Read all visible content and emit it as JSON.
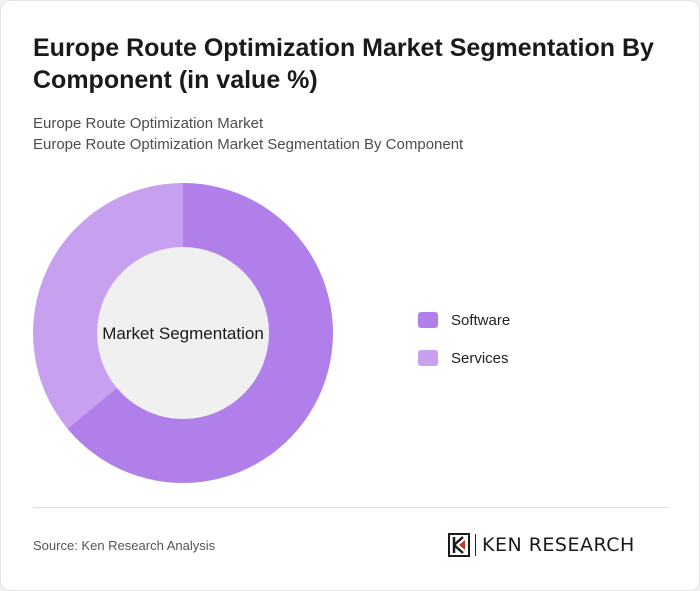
{
  "header": {
    "title": "Europe Route Optimization Market Segmentation By Component (in value %)",
    "subtitle_line1": "Europe Route Optimization Market",
    "subtitle_line2": "Europe Route Optimization Market Segmentation By Component"
  },
  "chart_data": {
    "type": "pie",
    "variant": "donut",
    "center_label": "Market Segmentation",
    "categories": [
      "Software",
      "Services"
    ],
    "values": [
      64,
      36
    ],
    "colors": [
      "#b07fea",
      "#c8a0f0"
    ],
    "legend_position": "right"
  },
  "footer": {
    "source": "Source: Ken Research Analysis",
    "logo_text": "KEN RESEARCH",
    "logo_mark": "K"
  },
  "colors": {
    "center_fill": "#f0f0f0",
    "card_background": "#ffffff"
  }
}
